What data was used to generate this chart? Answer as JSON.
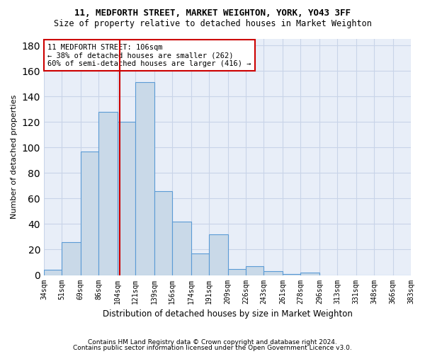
{
  "title1": "11, MEDFORTH STREET, MARKET WEIGHTON, YORK, YO43 3FF",
  "title2": "Size of property relative to detached houses in Market Weighton",
  "xlabel": "Distribution of detached houses by size in Market Weighton",
  "ylabel": "Number of detached properties",
  "bin_edges": [
    34,
    51,
    69,
    86,
    104,
    121,
    139,
    156,
    174,
    191,
    209,
    226,
    243,
    261,
    278,
    296,
    313,
    331,
    348,
    366,
    383
  ],
  "bar_values": [
    4,
    26,
    97,
    128,
    120,
    151,
    66,
    42,
    17,
    32,
    5,
    7,
    3,
    1,
    2,
    0,
    0,
    0,
    0,
    0
  ],
  "property_size": 106,
  "bar_color": "#c9d9e8",
  "bar_edge_color": "#5b9bd5",
  "vline_color": "#cc0000",
  "vline_x": 106,
  "annotation_box_color": "#cc0000",
  "annotation_text_line1": "11 MEDFORTH STREET: 106sqm",
  "annotation_text_line2": "← 38% of detached houses are smaller (262)",
  "annotation_text_line3": "60% of semi-detached houses are larger (416) →",
  "grid_color": "#c8d4e8",
  "background_color": "#e8eef8",
  "ylim": [
    0,
    185
  ],
  "yticks": [
    0,
    20,
    40,
    60,
    80,
    100,
    120,
    140,
    160,
    180
  ],
  "footer1": "Contains HM Land Registry data © Crown copyright and database right 2024.",
  "footer2": "Contains public sector information licensed under the Open Government Licence v3.0."
}
